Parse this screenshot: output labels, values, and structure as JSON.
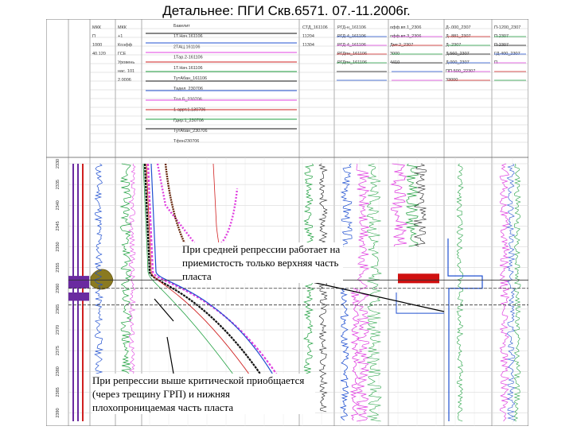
{
  "title": "Детальнее: ПГИ Скв.6571. 07.-11.2006г.",
  "annotations": {
    "upper": "При средней репрессии работает на приемистость только верхняя часть пласта",
    "lower": "При репрессии выше критической приобщается (через трещину ГРП) и нижняя плохопроницаемая часть пласта"
  },
  "header": {
    "col_a": [
      "МКК",
      "П",
      "1000",
      "40.120"
    ],
    "col_b": [
      "МКК",
      "+1",
      "Коэфф",
      "ГСЕ",
      "Уровень",
      "нас. 101",
      "2.0006"
    ],
    "col_c": [
      "Бакелит",
      "1Т.Нач.161106",
      "2ТАЦ.161106",
      "1Тар.2-161106",
      "1Т.Нач.161106",
      "ТутАбан_161106",
      "Тадел_230706",
      "Тпл.Б_230706",
      "1-аррт.1.130706",
      "Гдер.1_230706",
      "ТутАбан_230706",
      "Тфон230706"
    ],
    "col_d": [
      "СТД_161106",
      "11204",
      "11304"
    ],
    "col_e": [
      "РГД-н_161106",
      "РГД-4_161106",
      "РГД-4_161106",
      "РГДпн_161106",
      "РГДпн_161106"
    ],
    "col_f": [
      "офф.вп.1_2306",
      "офф.вп.3_2306",
      "Дмт.2_2307",
      "3000",
      "4410"
    ],
    "col_g": [
      "Д-.000_2307",
      "Д-.881_2307",
      "Д-.2307",
      "Д.560_2307",
      "Д.000_2307",
      "ПП-500_22307",
      "33000"
    ],
    "col_h": [
      "П-1200_2307",
      "П-2307",
      "П-2307",
      "ГД-400_2307",
      "П"
    ]
  },
  "chart_data": {
    "type": "line",
    "title": "Детальнее: ПГИ Скв.6571. 07.-11.2006г.",
    "depth_ticks": [
      "2330",
      "2335",
      "2340",
      "2345",
      "2350",
      "2355",
      "2360",
      "2365",
      "2370",
      "2375",
      "2380",
      "2385",
      "2390"
    ],
    "tracks": [
      {
        "name": "depth",
        "content": "tick labels"
      },
      {
        "name": "perforation",
        "content": "vertical bars"
      },
      {
        "name": "МКК",
        "content": "gamma / porosity curves"
      },
      {
        "name": "Бакелит",
        "content": "temperature curves"
      },
      {
        "name": "СТД",
        "content": "flow-meter curves"
      },
      {
        "name": "РГД",
        "content": "flow-meter curves"
      },
      {
        "name": "Д",
        "content": "flow-meter curves"
      },
      {
        "name": "П",
        "content": "flow-meter curves"
      }
    ],
    "zones": {
      "upper_intake_depth": 2358,
      "lower_interval_depth_range": [
        2360,
        2364
      ]
    },
    "colors": {
      "curve_black": "#111111",
      "curve_magenta": "#e040e0",
      "curve_blue": "#2050d0",
      "curve_red": "#d02020",
      "curve_green": "#20a040",
      "perforation": "#6a2aa0",
      "zone_fill": "#d01010",
      "gamma_fill": "#8a7a20"
    }
  }
}
